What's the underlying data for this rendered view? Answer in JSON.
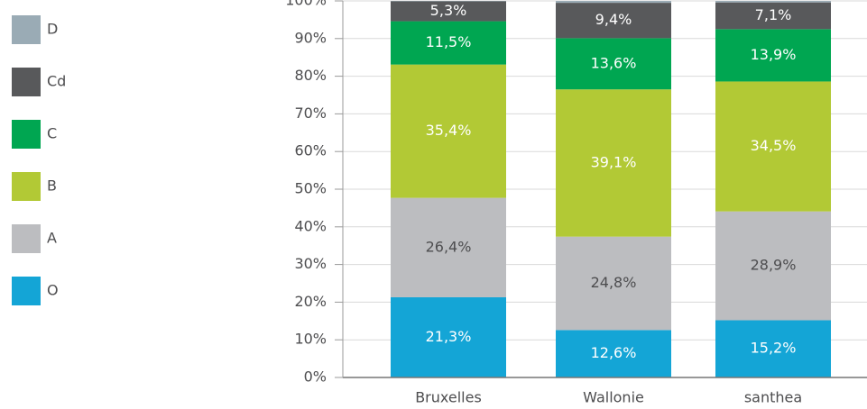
{
  "chart_data": {
    "type": "stacked_bar",
    "categories": [
      "Bruxelles",
      "Wallonie",
      "santhea"
    ],
    "series": [
      {
        "name": "O",
        "color": "#14a5d6",
        "label_color": "#ffffff",
        "values": [
          21.3,
          12.6,
          15.2
        ],
        "value_labels": [
          "21,3%",
          "12,6%",
          "15,2%"
        ]
      },
      {
        "name": "A",
        "color": "#bcbdc0",
        "label_color": "#4d4d4f",
        "values": [
          26.4,
          24.8,
          28.9
        ],
        "value_labels": [
          "26,4%",
          "24,8%",
          "28,9%"
        ]
      },
      {
        "name": "B",
        "color": "#b2c935",
        "label_color": "#ffffff",
        "values": [
          35.4,
          39.1,
          34.5
        ],
        "value_labels": [
          "35,4%",
          "39,1%",
          "34,5%"
        ]
      },
      {
        "name": "C",
        "color": "#00a651",
        "label_color": "#ffffff",
        "values": [
          11.5,
          13.6,
          13.9
        ],
        "value_labels": [
          "11,5%",
          "13,6%",
          "13,9%"
        ]
      },
      {
        "name": "Cd",
        "color": "#58595b",
        "label_color": "#ffffff",
        "values": [
          5.3,
          9.4,
          7.1
        ],
        "value_labels": [
          "5,3%",
          "9,4%",
          "7,1%"
        ]
      },
      {
        "name": "D",
        "color": "#9aabb5",
        "label_color": "#ffffff",
        "values": [
          0.1,
          0.5,
          0.4
        ]
      }
    ],
    "ylim": [
      0,
      100
    ],
    "yticks": [
      {
        "value": 0,
        "label": "0%"
      },
      {
        "value": 10,
        "label": "10%"
      },
      {
        "value": 20,
        "label": "20%"
      },
      {
        "value": 30,
        "label": "30%"
      },
      {
        "value": 40,
        "label": "40%"
      },
      {
        "value": 50,
        "label": "50%"
      },
      {
        "value": 60,
        "label": "60%"
      },
      {
        "value": 70,
        "label": "70%"
      },
      {
        "value": 80,
        "label": "80%"
      },
      {
        "value": 90,
        "label": "90%"
      },
      {
        "value": 100,
        "label": "100%"
      }
    ],
    "grid": true,
    "legend": "left"
  }
}
